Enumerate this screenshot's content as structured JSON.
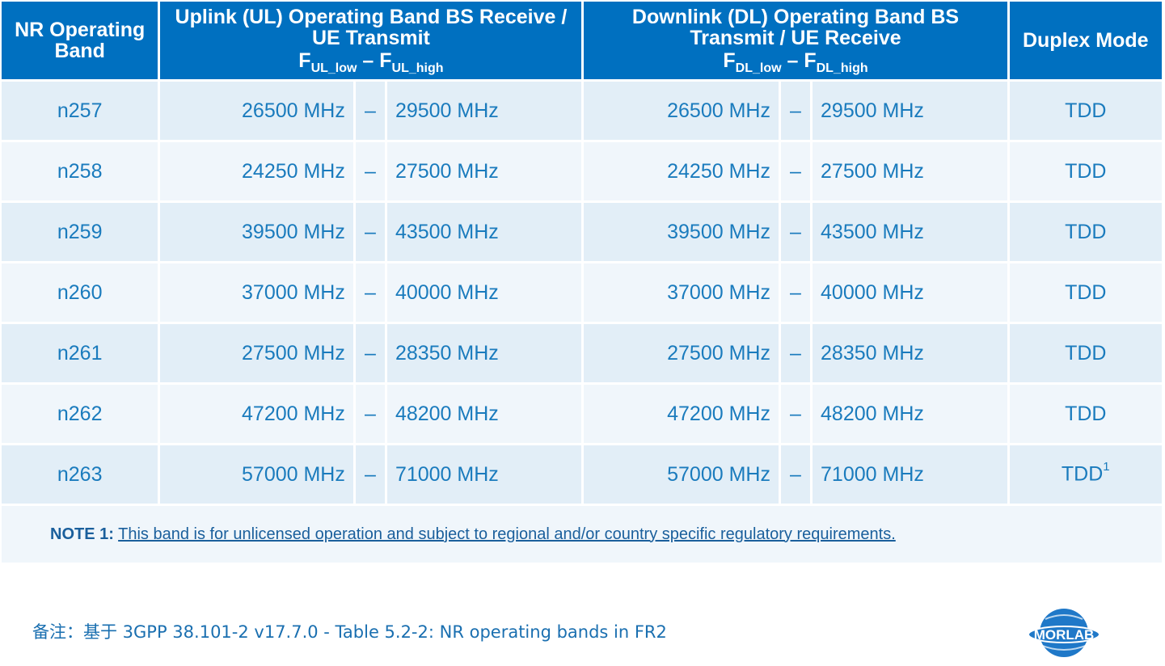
{
  "header": {
    "band": "NR Operating Band",
    "uplink_title": "Uplink (UL) Operating Band BS Receive / UE Transmit",
    "uplink_f": "F",
    "uplink_low_sub": "UL_low",
    "uplink_sep": " – ",
    "uplink_high_sub": "UL_high",
    "downlink_title": "Downlink (DL) Operating Band BS Transmit / UE Receive",
    "downlink_f": "F",
    "downlink_low_sub": "DL_low",
    "downlink_sep": " – ",
    "downlink_high_sub": "DL_high",
    "duplex": "Duplex Mode"
  },
  "rows": [
    {
      "band": "n257",
      "ul_low": "26500 MHz",
      "ul_dash": "–",
      "ul_high": "29500 MHz",
      "dl_low": "26500 MHz",
      "dl_dash": "–",
      "dl_high": "29500 MHz",
      "duplex": "TDD"
    },
    {
      "band": "n258",
      "ul_low": "24250 MHz",
      "ul_dash": "–",
      "ul_high": "27500 MHz",
      "dl_low": "24250 MHz",
      "dl_dash": "–",
      "dl_high": "27500 MHz",
      "duplex": "TDD"
    },
    {
      "band": "n259",
      "ul_low": "39500 MHz",
      "ul_dash": "–",
      "ul_high": "43500 MHz",
      "dl_low": "39500 MHz",
      "dl_dash": "–",
      "dl_high": "43500 MHz",
      "duplex": "TDD"
    },
    {
      "band": "n260",
      "ul_low": "37000 MHz",
      "ul_dash": "–",
      "ul_high": "40000 MHz",
      "dl_low": "37000 MHz",
      "dl_dash": "–",
      "dl_high": "40000 MHz",
      "duplex": "TDD"
    },
    {
      "band": "n261",
      "ul_low": "27500 MHz",
      "ul_dash": "–",
      "ul_high": "28350 MHz",
      "dl_low": "27500 MHz",
      "dl_dash": "–",
      "dl_high": "28350 MHz",
      "duplex": "TDD"
    },
    {
      "band": "n262",
      "ul_low": "47200 MHz",
      "ul_dash": "–",
      "ul_high": "48200 MHz",
      "dl_low": "47200 MHz",
      "dl_dash": "–",
      "dl_high": "48200 MHz",
      "duplex": "TDD"
    },
    {
      "band": "n263",
      "ul_low": "57000 MHz",
      "ul_dash": "–",
      "ul_high": "71000 MHz",
      "dl_low": "57000 MHz",
      "dl_dash": "–",
      "dl_high": "71000 MHz",
      "duplex": "TDD",
      "duplex_note": "1"
    }
  ],
  "note": {
    "label": "NOTE 1:",
    "text": "This band is for unlicensed operation and subject to regional and/or country specific regulatory requirements."
  },
  "caption": "备注：基于 3GPP 38.101-2 v17.7.0 - Table 5.2-2: NR operating bands in FR2",
  "logo": {
    "text": "MORLAB",
    "icon": "morlab-globe-logo"
  },
  "colors": {
    "header_bg": "#0070c0",
    "row_odd": "#e2eef7",
    "row_even": "#f0f6fb",
    "text": "#1a7bbd"
  }
}
